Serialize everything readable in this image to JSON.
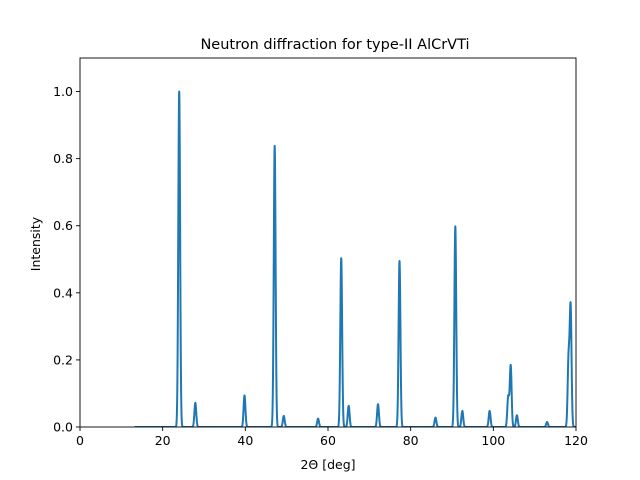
{
  "chart_data": {
    "type": "line",
    "title": "Neutron diffraction for type-II AlCrVTi",
    "xlabel": "2Θ [deg]",
    "ylabel": "Intensity",
    "xlim": [
      0,
      120
    ],
    "ylim": [
      0,
      1.1
    ],
    "x_ticks": [
      0,
      20,
      40,
      60,
      80,
      100,
      120
    ],
    "y_ticks": [
      0.0,
      0.2,
      0.4,
      0.6,
      0.8,
      1.0
    ],
    "x_tick_labels": [
      "0",
      "20",
      "40",
      "60",
      "80",
      "100",
      "120"
    ],
    "y_tick_labels": [
      "0.0",
      "0.2",
      "0.4",
      "0.6",
      "0.8",
      "1.0"
    ],
    "grid": false,
    "x_range_of_data": [
      13.2,
      120
    ],
    "line_color": "#1f77b4",
    "series": [
      {
        "peaks": [
          {
            "x": 24.0,
            "y": 1.0
          },
          {
            "x": 27.9,
            "y": 0.072
          },
          {
            "x": 39.8,
            "y": 0.094
          },
          {
            "x": 47.1,
            "y": 0.838
          },
          {
            "x": 49.3,
            "y": 0.033
          },
          {
            "x": 57.6,
            "y": 0.025
          },
          {
            "x": 63.2,
            "y": 0.503
          },
          {
            "x": 65.0,
            "y": 0.063
          },
          {
            "x": 72.1,
            "y": 0.068
          },
          {
            "x": 77.3,
            "y": 0.495
          },
          {
            "x": 86.0,
            "y": 0.028
          },
          {
            "x": 90.8,
            "y": 0.598
          },
          {
            "x": 92.5,
            "y": 0.048
          },
          {
            "x": 99.1,
            "y": 0.048
          },
          {
            "x": 103.6,
            "y": 0.09
          },
          {
            "x": 104.2,
            "y": 0.183
          },
          {
            "x": 105.7,
            "y": 0.035
          },
          {
            "x": 113.0,
            "y": 0.015
          },
          {
            "x": 118.2,
            "y": 0.2
          },
          {
            "x": 118.7,
            "y": 0.355
          }
        ]
      }
    ]
  }
}
